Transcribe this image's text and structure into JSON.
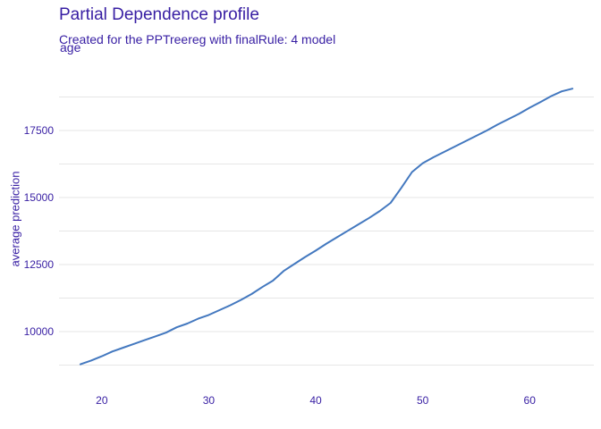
{
  "title": "Partial Dependence profile",
  "subtitle": "Created for the PPTreereg with finalRule:  4 model",
  "chart_data": {
    "type": "line",
    "panel_label": "age",
    "ylabel": "average prediction",
    "xlabel": "",
    "xlim": [
      16,
      66
    ],
    "ylim": [
      8500,
      19500
    ],
    "x_ticks": [
      20,
      30,
      40,
      50,
      60
    ],
    "y_ticks": [
      10000,
      12500,
      15000,
      17500
    ],
    "grid": "horizontal",
    "colors": {
      "line": "#4378bf",
      "grid": "#e6e6e6",
      "text": "#371ea3"
    },
    "series": [
      {
        "x": [
          18,
          19,
          20,
          21,
          22,
          23,
          24,
          25,
          26,
          27,
          28,
          29,
          30,
          31,
          32,
          33,
          34,
          35,
          36,
          37,
          38,
          39,
          40,
          41,
          42,
          43,
          44,
          45,
          46,
          47,
          48,
          49,
          50,
          51,
          52,
          53,
          54,
          55,
          56,
          57,
          58,
          59,
          60,
          61,
          62,
          63,
          64
        ],
        "y": [
          8780,
          8920,
          9080,
          9260,
          9400,
          9540,
          9680,
          9820,
          9960,
          10160,
          10300,
          10480,
          10620,
          10800,
          10980,
          11180,
          11400,
          11660,
          11900,
          12260,
          12520,
          12780,
          13020,
          13280,
          13520,
          13760,
          14000,
          14240,
          14500,
          14800,
          15360,
          15950,
          16280,
          16500,
          16700,
          16900,
          17100,
          17300,
          17500,
          17720,
          17920,
          18120,
          18350,
          18560,
          18780,
          18960,
          19060
        ]
      }
    ]
  }
}
